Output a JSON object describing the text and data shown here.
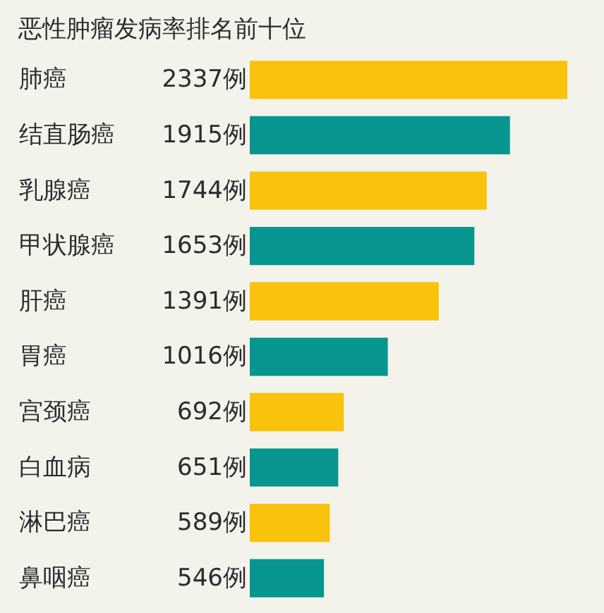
{
  "chart_data": {
    "type": "bar",
    "orientation": "horizontal",
    "title": "恶性肿瘤发病率排名前十位",
    "categories": [
      "肺癌",
      "结直肠癌",
      "乳腺癌",
      "甲状腺癌",
      "肝癌",
      "胃癌",
      "宫颈癌",
      "白血病",
      "淋巴癌",
      "鼻咽癌"
    ],
    "values": [
      2337,
      1915,
      1744,
      1653,
      1391,
      1016,
      692,
      651,
      589,
      546
    ],
    "value_labels": [
      "2337例",
      "1915例",
      "1744例",
      "1653例",
      "1391例",
      "1016例",
      "692例",
      "651例",
      "589例",
      "546例"
    ],
    "colors": [
      "#f9c20c",
      "#06968f",
      "#f9c20c",
      "#06968f",
      "#f9c20c",
      "#06968f",
      "#f9c20c",
      "#06968f",
      "#f9c20c",
      "#06968f"
    ]
  }
}
